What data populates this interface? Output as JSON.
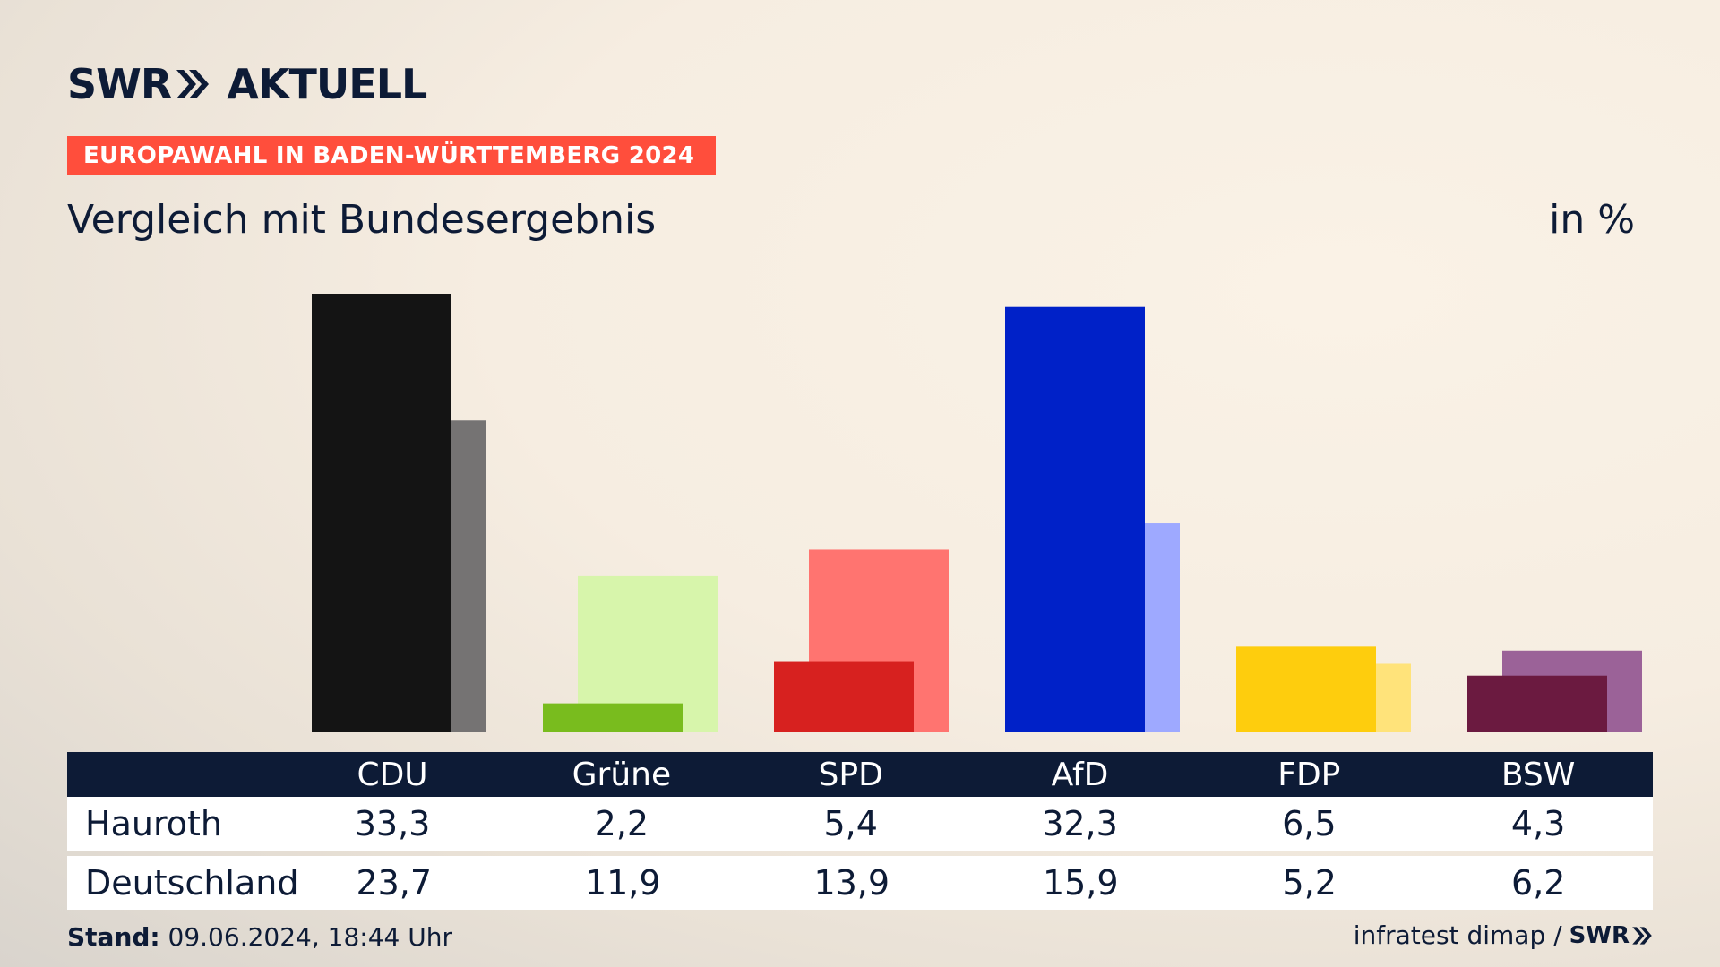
{
  "brand": {
    "logo_text_left": "SWR",
    "logo_text_right": "AKTUELL",
    "dark_color": "#0d1b36"
  },
  "banner": {
    "text": "EUROPAWAHL IN BADEN-WÜRTTEMBERG 2024",
    "color": "#ff4e3c"
  },
  "subtitle": "Vergleich mit Bundesergebnis",
  "unit": "in %",
  "chart_data": {
    "type": "bar",
    "categories": [
      "CDU",
      "Grüne",
      "SPD",
      "AfD",
      "FDP",
      "BSW"
    ],
    "series": [
      {
        "name": "Hauroth",
        "values": [
          33.3,
          2.2,
          5.4,
          32.3,
          6.5,
          4.3
        ]
      },
      {
        "name": "Deutschland",
        "values": [
          23.7,
          11.9,
          13.9,
          15.9,
          5.2,
          6.2
        ]
      }
    ],
    "colors_primary": [
      "#141414",
      "#79bc1e",
      "#d7211f",
      "#0021c8",
      "#fecd0d",
      "#6b1a40"
    ],
    "colors_secondary": [
      "#757373",
      "#d7f5ab",
      "#ff7470",
      "#9ea9ff",
      "#ffe37a",
      "#9b6298"
    ],
    "ylim": [
      0,
      33.3
    ]
  },
  "table": {
    "rows": [
      {
        "label": "Hauroth",
        "values": [
          "33,3",
          "2,2",
          "5,4",
          "32,3",
          "6,5",
          "4,3"
        ]
      },
      {
        "label": "Deutschland",
        "values": [
          "23,7",
          "11,9",
          "13,9",
          "15,9",
          "5,2",
          "6,2"
        ]
      }
    ]
  },
  "footer": {
    "stand_label": "Stand:",
    "stand_value": "09.06.2024, 18:44 Uhr",
    "source_text": "infratest dimap /",
    "source_logo": "SWR"
  }
}
